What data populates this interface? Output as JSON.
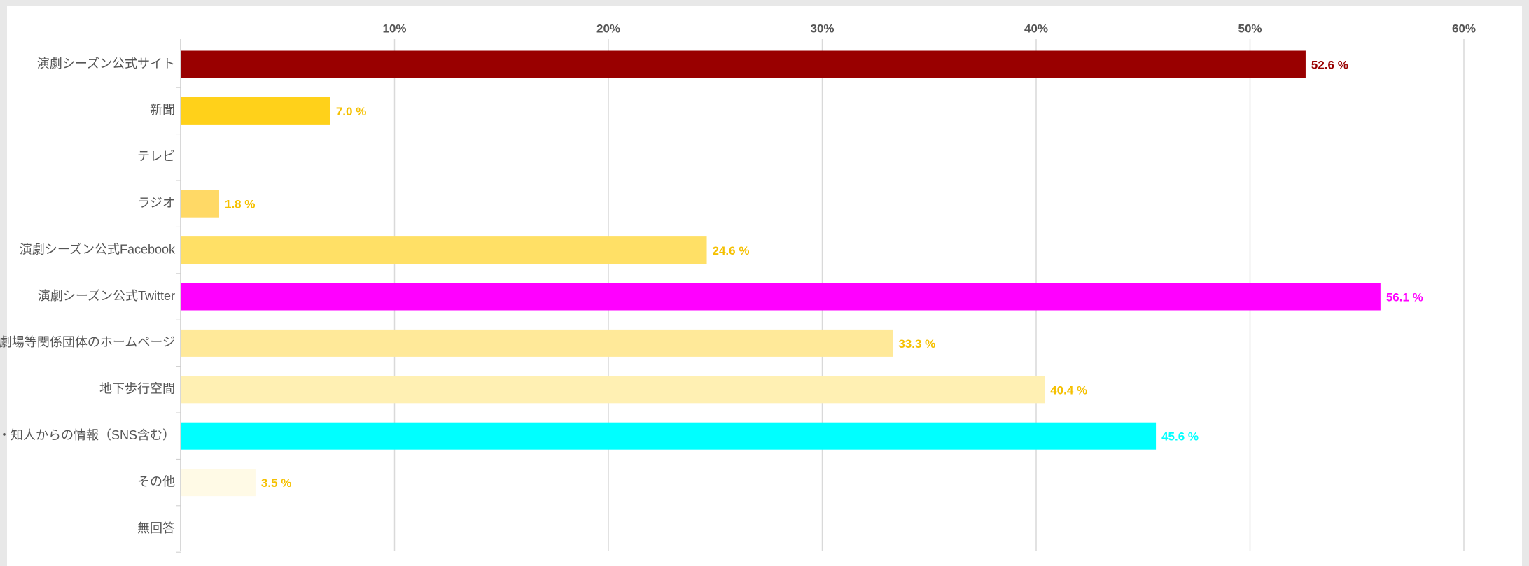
{
  "chart_data": {
    "type": "hbar",
    "categories": [
      "演劇シーズン公式サイト",
      "新聞",
      "テレビ",
      "ラジオ",
      "演劇シーズン公式Facebook",
      "演劇シーズン公式Twitter",
      "劇団・劇場等関係団体のホームページ",
      "地下歩行空間",
      "友人・知人からの情報（SNS含む）",
      "その他",
      "無回答"
    ],
    "values": [
      52.6,
      7.0,
      null,
      1.8,
      24.6,
      56.1,
      33.3,
      40.4,
      45.6,
      3.5,
      null
    ],
    "value_labels": [
      "52.6 %",
      "7.0 %",
      null,
      "1.8 %",
      "24.6 %",
      "56.1 %",
      "33.3 %",
      "40.4 %",
      "45.6 %",
      "3.5 %",
      null
    ],
    "colors": [
      "#990000",
      "#ffd11a",
      null,
      "#ffd966",
      "#ffe066",
      "#ff00ff",
      "#ffe999",
      "#fff0b3",
      "#00ffff",
      "#fffae6",
      null
    ],
    "label_colors": [
      "#990000",
      "#f5c000",
      null,
      "#f5c000",
      "#f5c000",
      "#ff00ff",
      "#f5c000",
      "#f5c000",
      "#00ffff",
      "#f5c000",
      null
    ],
    "xlim": [
      0,
      60
    ],
    "xticks": [
      {
        "value": 10,
        "label": "10%"
      },
      {
        "value": 20,
        "label": "20%"
      },
      {
        "value": 30,
        "label": "30%"
      },
      {
        "value": 40,
        "label": "40%"
      },
      {
        "value": 50,
        "label": "50%"
      },
      {
        "value": 60,
        "label": "60%"
      }
    ],
    "grid": true
  }
}
